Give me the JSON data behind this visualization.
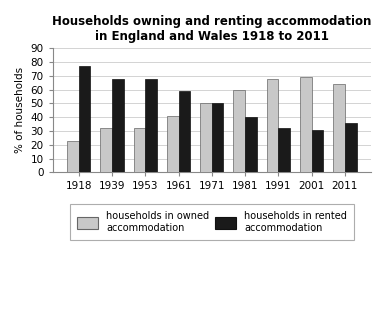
{
  "title_line1": "Households owning and renting accommodation",
  "title_line2": "in England and Wales 1918 to 2011",
  "years": [
    "1918",
    "1939",
    "1953",
    "1961",
    "1971",
    "1981",
    "1991",
    "2001",
    "2011"
  ],
  "owned": [
    23,
    32,
    32,
    41,
    50,
    60,
    68,
    69,
    64
  ],
  "rented": [
    77,
    68,
    68,
    59,
    50,
    40,
    32,
    31,
    36
  ],
  "owned_color": "#c8c8c8",
  "rented_color": "#1a1a1a",
  "ylabel": "% of households",
  "ylim": [
    0,
    90
  ],
  "yticks": [
    0,
    10,
    20,
    30,
    40,
    50,
    60,
    70,
    80,
    90
  ],
  "legend_owned": "households in owned\naccommodation",
  "legend_rented": "households in rented\naccommodation",
  "bar_width": 0.35,
  "background_color": "#ffffff",
  "title_fontsize": 8.5,
  "axis_fontsize": 7.5,
  "legend_fontsize": 7
}
